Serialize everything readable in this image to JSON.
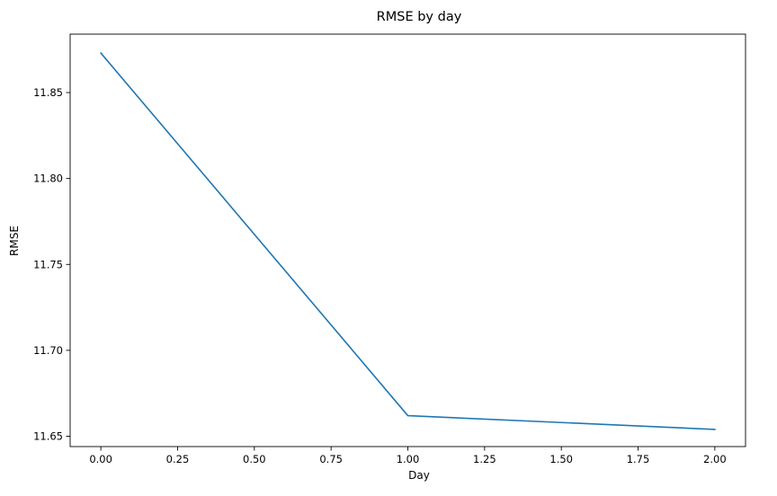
{
  "chart_data": {
    "type": "line",
    "title": "RMSE by day",
    "xlabel": "Day",
    "ylabel": "RMSE",
    "xlim": [
      -0.1,
      2.1
    ],
    "ylim": [
      11.644,
      11.884
    ],
    "xticks": [
      0.0,
      0.25,
      0.5,
      0.75,
      1.0,
      1.25,
      1.5,
      1.75,
      2.0
    ],
    "xtick_labels": [
      "0.00",
      "0.25",
      "0.50",
      "0.75",
      "1.00",
      "1.25",
      "1.50",
      "1.75",
      "2.00"
    ],
    "yticks": [
      11.65,
      11.7,
      11.75,
      11.8,
      11.85
    ],
    "ytick_labels": [
      "11.65",
      "11.70",
      "11.75",
      "11.80",
      "11.85"
    ],
    "grid": false,
    "series": [
      {
        "color": "#1f77b4",
        "x": [
          0,
          1,
          2
        ],
        "y": [
          11.873,
          11.662,
          11.654
        ]
      }
    ]
  }
}
